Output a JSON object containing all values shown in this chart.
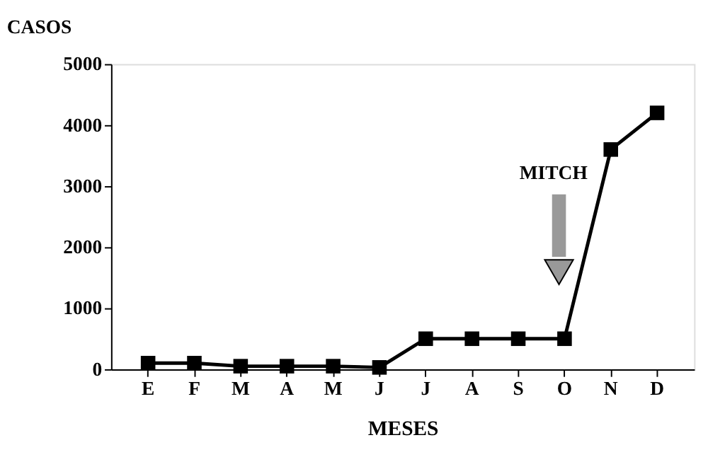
{
  "chart_data": {
    "type": "line",
    "xlabel": "MESES",
    "ylabel": "CASOS",
    "categories": [
      "E",
      "F",
      "M",
      "A",
      "M",
      "J",
      "J",
      "A",
      "S",
      "O",
      "N",
      "D"
    ],
    "series": [
      {
        "color": "#000000",
        "values": [
          100,
          100,
          50,
          50,
          50,
          30,
          500,
          500,
          500,
          500,
          3600,
          4200
        ]
      }
    ],
    "ylim": [
      0,
      5000
    ],
    "yticks": [
      0,
      1000,
      2000,
      3000,
      4000,
      5000
    ],
    "marker": "square",
    "grid": false,
    "legend": false,
    "annotations": [
      "MITCH"
    ]
  }
}
